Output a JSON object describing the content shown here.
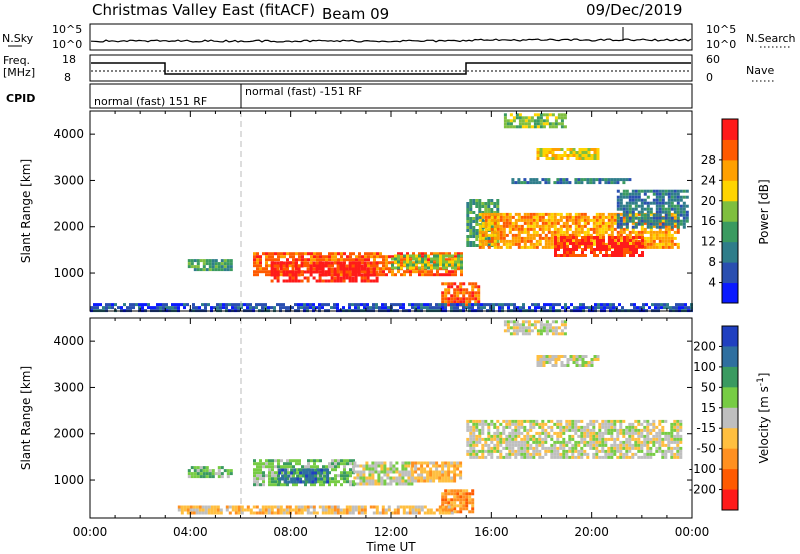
{
  "header": {
    "title": "Christmas Valley East (fitACF)",
    "beam": "Beam 09",
    "date": "09/Dec/2019"
  },
  "top_panel": {
    "left_label": "N.Sky",
    "right_label": "N.Search",
    "left_ticks": [
      "10^5",
      "10^0"
    ],
    "right_ticks": [
      "10^5",
      "10^0"
    ]
  },
  "freq_panel": {
    "left_label_1": "Freq.",
    "left_label_2": "[MHz]",
    "left_ticks": [
      "18",
      "8"
    ],
    "right_ticks": [
      "60",
      "0"
    ],
    "right_label": "Nave"
  },
  "cpid_panel": {
    "label": "CPID",
    "segments": [
      {
        "text": "normal (fast) 151 RF",
        "start_hour": 0,
        "end_hour": 6
      },
      {
        "text": "normal (fast) -151 RF",
        "start_hour": 6,
        "end_hour": 24
      }
    ]
  },
  "chart_data": [
    {
      "type": "heatmap",
      "panel": "power",
      "ylabel": "Slant Range [km]",
      "xlabel": "",
      "ylim": [
        180,
        4500
      ],
      "xlim": [
        0,
        24
      ],
      "y_ticks": [
        1000,
        2000,
        3000,
        4000
      ],
      "x_ticks": [
        "00:00",
        "04:00",
        "08:00",
        "12:00",
        "16:00",
        "20:00",
        "00:00"
      ],
      "colorbar": {
        "label": "Power [dB]",
        "ticks": [
          "4",
          "8",
          "12",
          "16",
          "20",
          "24",
          "28"
        ],
        "colors": [
          "#0a1aff",
          "#2a4fb0",
          "#2f7d8a",
          "#3a9a60",
          "#7fbf3f",
          "#ffd400",
          "#ffa000",
          "#ff5a00",
          "#ff1a1a"
        ]
      },
      "regions": [
        {
          "t0": 3.9,
          "t1": 5.6,
          "r0": 1050,
          "r1": 1300,
          "level": 3
        },
        {
          "t0": 6.5,
          "t1": 14.8,
          "r0": 950,
          "r1": 1450,
          "level": 7
        },
        {
          "t0": 7.2,
          "t1": 11.5,
          "r0": 800,
          "r1": 1250,
          "level": 8
        },
        {
          "t0": 12.0,
          "t1": 14.8,
          "r0": 1100,
          "r1": 1400,
          "level": 4
        },
        {
          "t0": 14.0,
          "t1": 15.5,
          "r0": 300,
          "r1": 800,
          "level": 7
        },
        {
          "t0": 15.0,
          "t1": 16.2,
          "r0": 1600,
          "r1": 2600,
          "level": 3
        },
        {
          "t0": 15.5,
          "t1": 23.5,
          "r0": 1550,
          "r1": 2300,
          "level": 6
        },
        {
          "t0": 18.5,
          "t1": 22.0,
          "r0": 1400,
          "r1": 1800,
          "level": 8
        },
        {
          "t0": 21.0,
          "t1": 23.8,
          "r0": 2000,
          "r1": 2800,
          "level": 2
        },
        {
          "t0": 16.5,
          "t1": 19.0,
          "r0": 4150,
          "r1": 4450,
          "level": 4
        },
        {
          "t0": 17.8,
          "t1": 20.2,
          "r0": 3500,
          "r1": 3700,
          "level": 5
        },
        {
          "t0": 16.8,
          "t1": 21.5,
          "r0": 2950,
          "r1": 3050,
          "level": 2
        },
        {
          "t0": 0.0,
          "t1": 24.0,
          "r0": 200,
          "r1": 350,
          "level": 1
        }
      ]
    },
    {
      "type": "heatmap",
      "panel": "velocity",
      "ylabel": "Slant Range [km]",
      "xlabel": "Time UT",
      "ylim": [
        180,
        4500
      ],
      "xlim": [
        0,
        24
      ],
      "y_ticks": [
        1000,
        2000,
        3000,
        4000
      ],
      "x_ticks": [
        "00:00",
        "04:00",
        "08:00",
        "12:00",
        "16:00",
        "20:00",
        "00:00"
      ],
      "colorbar": {
        "label": "Velocity [m s^-1]",
        "ticks": [
          "200",
          "100",
          "50",
          "15",
          "-15",
          "-50",
          "-100",
          "-200"
        ],
        "colors": [
          "#2040c0",
          "#2f6f9f",
          "#3a9a60",
          "#77cc44",
          "#bfbfbf",
          "#ffbf40",
          "#ff9020",
          "#ff5a00",
          "#ff1a1a"
        ]
      },
      "regions": [
        {
          "t0": 3.9,
          "t1": 5.6,
          "r0": 1050,
          "r1": 1300,
          "level": 3
        },
        {
          "t0": 6.5,
          "t1": 10.5,
          "r0": 900,
          "r1": 1450,
          "level": 3
        },
        {
          "t0": 7.5,
          "t1": 9.5,
          "r0": 950,
          "r1": 1250,
          "level": 1
        },
        {
          "t0": 10.5,
          "t1": 12.8,
          "r0": 900,
          "r1": 1400,
          "level": 4
        },
        {
          "t0": 12.8,
          "t1": 14.8,
          "r0": 950,
          "r1": 1400,
          "level": 5
        },
        {
          "t0": 14.0,
          "t1": 15.3,
          "r0": 300,
          "r1": 800,
          "level": 6
        },
        {
          "t0": 15.0,
          "t1": 23.5,
          "r0": 1500,
          "r1": 2300,
          "level": 4
        },
        {
          "t0": 16.5,
          "t1": 19.0,
          "r0": 4150,
          "r1": 4450,
          "level": 4
        },
        {
          "t0": 17.8,
          "t1": 20.2,
          "r0": 3500,
          "r1": 3700,
          "level": 4
        },
        {
          "t0": 3.5,
          "t1": 14.5,
          "r0": 300,
          "r1": 450,
          "level": 5
        }
      ]
    }
  ]
}
